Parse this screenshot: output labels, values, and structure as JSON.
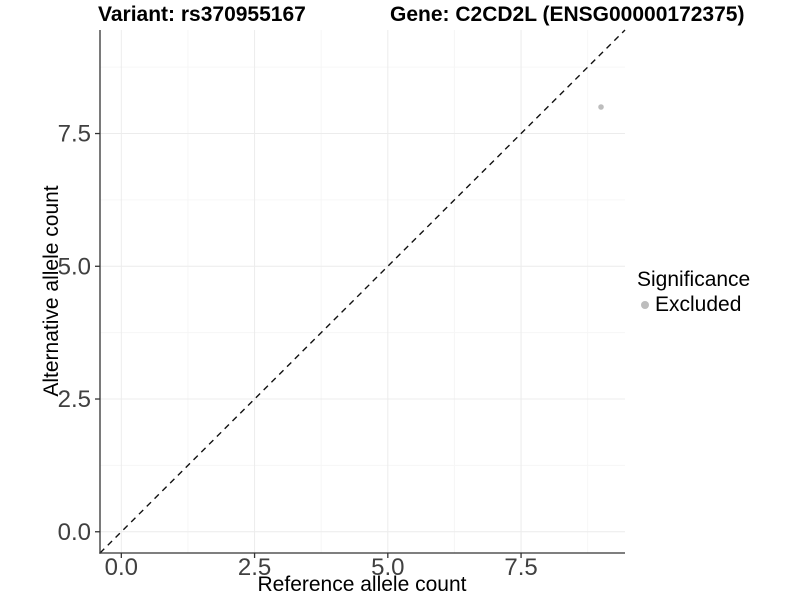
{
  "header": {
    "variant_title": "Variant: rs370955167",
    "gene_title": "Gene: C2CD2L (ENSG00000172375)"
  },
  "chart_data": {
    "type": "scatter",
    "title": "Variant: rs370955167   Gene: C2CD2L (ENSG00000172375)",
    "xlabel": "Reference allele count",
    "ylabel": "Alternative allele count",
    "xlim": [
      -0.4,
      9.45
    ],
    "ylim": [
      -0.4,
      9.45
    ],
    "x_tick_labels": [
      "0.0",
      "2.5",
      "5.0",
      "7.5"
    ],
    "x_tick_values": [
      0,
      2.5,
      5,
      7.5
    ],
    "y_tick_labels": [
      "0.0",
      "2.5",
      "5.0",
      "7.5"
    ],
    "y_tick_values": [
      0,
      2.5,
      5,
      7.5
    ],
    "x_minor_values": [
      1.25,
      3.75,
      6.25,
      8.75
    ],
    "y_minor_values": [
      1.25,
      3.75,
      6.25,
      8.75
    ],
    "grid": "major+minor",
    "series": [
      {
        "name": "Excluded",
        "marker": "circle",
        "color": "#bdbdbd",
        "points": [
          {
            "x": 9,
            "y": 8
          }
        ]
      }
    ],
    "reference_line": {
      "type": "identity",
      "slope": 1,
      "intercept": 0,
      "style": "dashed",
      "color": "#111111"
    },
    "legend": {
      "title": "Significance",
      "position": "right",
      "entries": [
        {
          "label": "Excluded",
          "color": "#bdbdbd",
          "marker": "circle"
        }
      ]
    }
  },
  "colors": {
    "background": "#ffffff",
    "axis_line": "#333333",
    "tick_mark": "#333333",
    "tick_text": "#404040",
    "grid_major": "#ececec",
    "grid_minor": "#f6f6f6",
    "point": "#bdbdbd",
    "reference_line": "#111111"
  }
}
